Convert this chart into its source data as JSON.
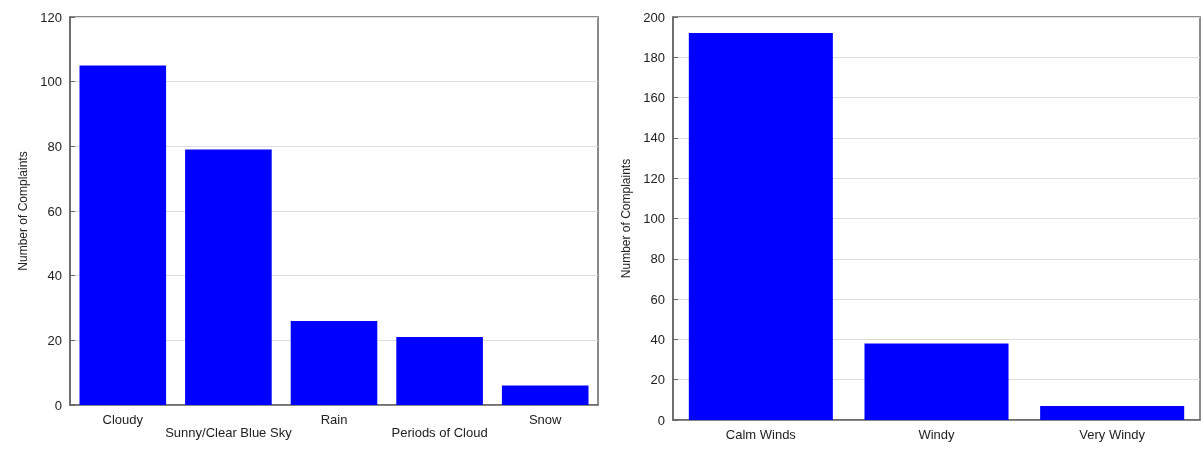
{
  "chart_data": [
    {
      "type": "bar",
      "ylabel": "Number of Complaints",
      "categories": [
        "Cloudy",
        "Sunny/Clear Blue Sky",
        "Rain",
        "Periods of Cloud",
        "Snow"
      ],
      "values": [
        105,
        79,
        26,
        21,
        6
      ],
      "color": "#0000ff",
      "ylim": [
        0,
        120
      ],
      "yticks": [
        0,
        20,
        40,
        60,
        80,
        100,
        120
      ],
      "grid": "y"
    },
    {
      "type": "bar",
      "ylabel": "Number of Complaints",
      "categories": [
        "Calm Winds",
        "Windy",
        "Very Windy"
      ],
      "values": [
        192,
        38,
        7
      ],
      "color": "#0000ff",
      "ylim": [
        0,
        200
      ],
      "yticks": [
        0,
        20,
        40,
        60,
        80,
        100,
        120,
        140,
        160,
        180,
        200
      ],
      "grid": "y"
    }
  ]
}
